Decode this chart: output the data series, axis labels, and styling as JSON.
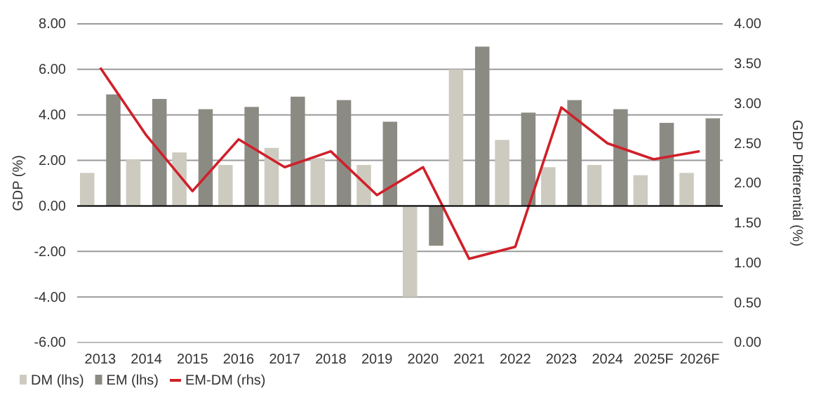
{
  "chart_data": {
    "type": "bar",
    "ylabel": "GDP (%)",
    "y2label": "GDP Differential (%)",
    "categories": [
      "2013",
      "2014",
      "2015",
      "2016",
      "2017",
      "2018",
      "2019",
      "2020",
      "2021",
      "2022",
      "2023",
      "2024",
      "2025F",
      "2026F"
    ],
    "series": [
      {
        "name": "DM (lhs)",
        "color": "#cdcbbf",
        "values": [
          1.45,
          2.05,
          2.35,
          1.8,
          2.55,
          2.1,
          1.8,
          -4.0,
          6.0,
          2.9,
          1.7,
          1.8,
          1.35,
          1.45
        ]
      },
      {
        "name": "EM (lhs)",
        "color": "#8c8b83",
        "values": [
          4.9,
          4.7,
          4.25,
          4.35,
          4.8,
          4.65,
          3.7,
          -1.75,
          7.0,
          4.1,
          4.65,
          4.25,
          3.65,
          3.85
        ]
      },
      {
        "name": "EM-DM (rhs)",
        "type": "line",
        "axis": "y2",
        "color": "#d0202a",
        "values": [
          3.45,
          2.6,
          1.9,
          2.55,
          2.2,
          2.4,
          1.85,
          2.2,
          1.05,
          1.2,
          2.95,
          2.5,
          2.3,
          2.4
        ]
      }
    ],
    "ylim": [
      -6,
      8
    ],
    "yticks": [
      {
        "value": -6,
        "label": "-6.00"
      },
      {
        "value": -4,
        "label": "-4.00"
      },
      {
        "value": -2,
        "label": "-2.00"
      },
      {
        "value": 0,
        "label": "0.00"
      },
      {
        "value": 2,
        "label": "2.00"
      },
      {
        "value": 4,
        "label": "4.00"
      },
      {
        "value": 6,
        "label": "6.00"
      },
      {
        "value": 8,
        "label": "8.00"
      }
    ],
    "y2lim": [
      0,
      4
    ],
    "y2ticks": [
      {
        "value": 0,
        "label": "0.00"
      },
      {
        "value": 0.5,
        "label": "0.50"
      },
      {
        "value": 1,
        "label": "1.00"
      },
      {
        "value": 1.5,
        "label": "1.50"
      },
      {
        "value": 2,
        "label": "2.00"
      },
      {
        "value": 2.5,
        "label": "2.50"
      },
      {
        "value": 3,
        "label": "3.00"
      },
      {
        "value": 3.5,
        "label": "3.50"
      },
      {
        "value": 4,
        "label": "4.00"
      }
    ],
    "grid": "y",
    "legend": "bottom left"
  }
}
